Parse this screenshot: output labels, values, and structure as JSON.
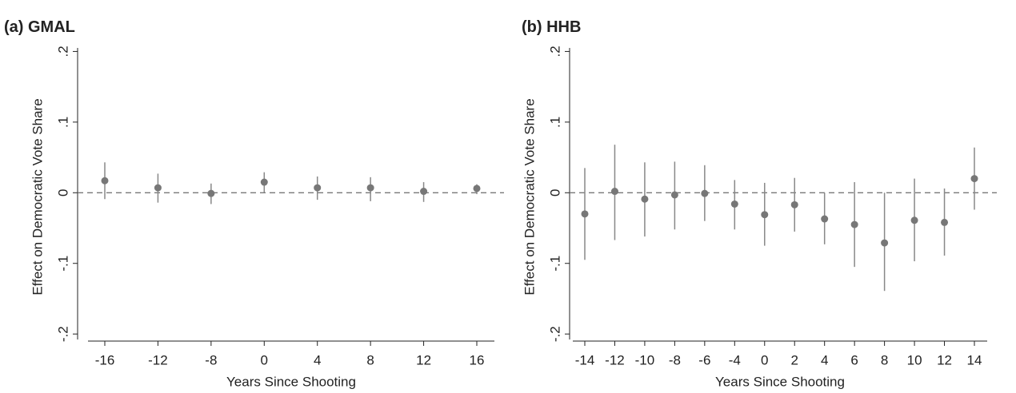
{
  "chart_data": [
    {
      "type": "errorbar",
      "title": "(a) GMAL",
      "x_label": "Years Since Shooting",
      "y_label": "Effect on Democratic Vote Share",
      "categories": [
        "-16",
        "-12",
        "-8",
        "0",
        "4",
        "8",
        "12",
        "16"
      ],
      "values": [
        0.017,
        0.007,
        -0.001,
        0.015,
        0.007,
        0.007,
        0.002,
        0.006
      ],
      "ci_low": [
        -0.009,
        -0.014,
        -0.016,
        0,
        -0.01,
        -0.012,
        -0.013,
        -0.002
      ],
      "ci_high": [
        0.043,
        0.027,
        0.013,
        0.029,
        0.023,
        0.022,
        0.015,
        0.012
      ],
      "color": "#777777",
      "ylim": [
        -0.21,
        0.205
      ],
      "yticks": [
        {
          "value": 0.2,
          "label": ".2"
        },
        {
          "value": 0.1,
          "label": ".1"
        },
        0,
        {
          "value": -0.1,
          "label": "-.1"
        },
        {
          "value": -0.2,
          "label": "-.2"
        }
      ],
      "hline": 0
    },
    {
      "type": "errorbar",
      "title": "(b) HHB",
      "x_label": "Years Since Shooting",
      "y_label": "Effect on Democratic Vote Share",
      "categories": [
        "-14",
        "-12",
        "-10",
        "-8",
        "-6",
        "-4",
        "0",
        "2",
        "4",
        "6",
        "8",
        "10",
        "12",
        "14"
      ],
      "values": [
        -0.03,
        0.002,
        -0.009,
        -0.003,
        -0.001,
        -0.016,
        -0.031,
        -0.017,
        -0.037,
        -0.045,
        -0.071,
        -0.039,
        -0.042,
        0.02
      ],
      "ci_low": [
        -0.095,
        -0.067,
        -0.062,
        -0.052,
        -0.04,
        -0.052,
        -0.075,
        -0.055,
        -0.073,
        -0.105,
        -0.139,
        -0.097,
        -0.089,
        -0.024
      ],
      "ci_high": [
        0.035,
        0.068,
        0.043,
        0.044,
        0.039,
        0.018,
        0.014,
        0.021,
        0,
        0.015,
        0,
        0.02,
        0.006,
        0.064
      ],
      "color": "#777777",
      "ylim": [
        -0.21,
        0.205
      ],
      "yticks": [
        {
          "value": 0.2,
          "label": ".2"
        },
        {
          "value": 0.1,
          "label": ".1"
        },
        0,
        {
          "value": -0.1,
          "label": "-.1"
        },
        {
          "value": -0.2,
          "label": "-.2"
        }
      ],
      "hline": 0
    }
  ]
}
